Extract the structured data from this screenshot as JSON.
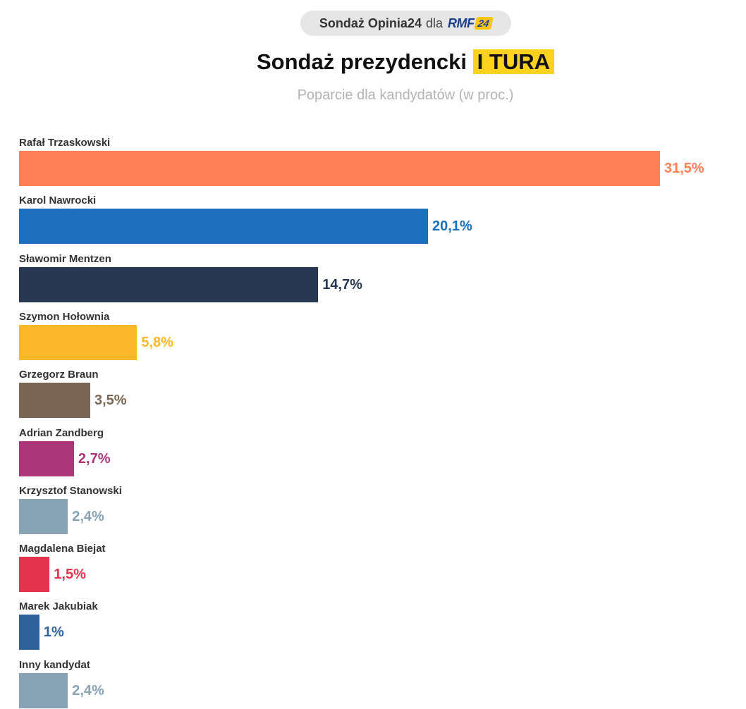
{
  "header": {
    "badge_prefix": "Sondaż Opinia24",
    "badge_for": "dla",
    "badge_logo": "RMF",
    "badge_logo_num": "24",
    "title_main": "Sondaż prezydencki",
    "title_highlight": "I TURA",
    "subtitle": "Poparcie dla kandydatów (w proc.)"
  },
  "colors": {
    "highlight": "#fdd21f",
    "brand_blue": "#1d3e8c"
  },
  "chart_data": {
    "type": "bar",
    "orientation": "horizontal",
    "title": "Sondaż prezydencki I TURA",
    "subtitle": "Poparcie dla kandydatów (w proc.)",
    "xlim": [
      0,
      31.5
    ],
    "categories": [
      "Rafał Trzaskowski",
      "Karol Nawrocki",
      "Sławomir Mentzen",
      "Szymon Hołownia",
      "Grzegorz Braun",
      "Adrian Zandberg",
      "Krzysztof Stanowski",
      "Magdalena Biejat",
      "Marek Jakubiak",
      "Inny kandydat"
    ],
    "values": [
      31.5,
      20.1,
      14.7,
      5.8,
      3.5,
      2.7,
      2.4,
      1.5,
      1,
      2.4
    ],
    "labels": [
      "31,5%",
      "20,1%",
      "14,7%",
      "5,8%",
      "3,5%",
      "2,7%",
      "2,4%",
      "1,5%",
      "1%",
      "2,4%"
    ],
    "bar_colors": [
      "#ff7f56",
      "#1b6fbd",
      "#273852",
      "#fbb82b",
      "#7a6652",
      "#ab377a",
      "#88a3b6",
      "#e2344d",
      "#2f6299",
      "#88a3b6"
    ],
    "label_colors": [
      "#ff7f56",
      "#1b6fbd",
      "#273852",
      "#fbb82b",
      "#7a6652",
      "#ab377a",
      "#88a3b6",
      "#e2344d",
      "#2f6299",
      "#88a3b6"
    ]
  }
}
